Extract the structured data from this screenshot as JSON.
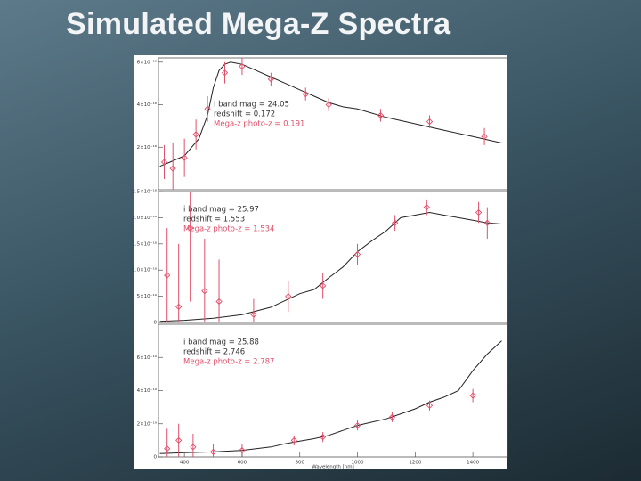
{
  "title": "Simulated Mega-Z Spectra",
  "chart_data": [
    {
      "type": "line",
      "xlim": [
        310,
        1520
      ],
      "ylim": [
        0,
        6.2e-18
      ],
      "yticks": [
        {
          "value": 2e-18,
          "label": "2×10⁻¹⁸"
        },
        {
          "value": 4e-18,
          "label": "4×10⁻¹⁸"
        },
        {
          "value": 6e-18,
          "label": "6×10⁻¹⁸"
        }
      ],
      "annotations": [
        {
          "text": "i band mag = 24.05",
          "color": "#333333"
        },
        {
          "text": "redshift = 0.172",
          "color": "#333333"
        },
        {
          "text": "Mega-z photo-z = 0.191",
          "color": "#e0506a"
        }
      ],
      "series": [
        {
          "color": "#222222",
          "x": [
            315,
            350,
            400,
            450,
            480,
            500,
            520,
            540,
            560,
            600,
            650,
            700,
            750,
            800,
            850,
            900,
            950,
            1000,
            1100,
            1200,
            1300,
            1400,
            1500
          ],
          "values": [
            1.1e-18,
            1.3e-18,
            1.6e-18,
            2.4e-18,
            3.5e-18,
            4.8e-18,
            5.6e-18,
            5.9e-18,
            6e-18,
            5.9e-18,
            5.6e-18,
            5.3e-18,
            5e-18,
            4.7e-18,
            4.4e-18,
            4.1e-18,
            3.9e-18,
            3.8e-18,
            3.4e-18,
            3.1e-18,
            2.8e-18,
            2.5e-18,
            2.2e-18
          ]
        },
        {
          "type": "errorbar",
          "color": "#e0506a",
          "x": [
            330,
            360,
            400,
            440,
            480,
            540,
            600,
            700,
            820,
            900,
            1080,
            1250,
            1440
          ],
          "values": [
            1.3e-18,
            1e-18,
            1.5e-18,
            2.6e-18,
            3.8e-18,
            5.5e-18,
            5.8e-18,
            5.2e-18,
            4.5e-18,
            4e-18,
            3.5e-18,
            3.2e-18,
            2.5e-18
          ],
          "errors": [
            8e-19,
            1.2e-18,
            9e-19,
            7e-19,
            6e-19,
            5e-19,
            4e-19,
            3e-19,
            3e-19,
            3e-19,
            3e-19,
            3e-19,
            4e-19
          ]
        }
      ]
    },
    {
      "type": "line",
      "xlim": [
        310,
        1520
      ],
      "ylim": [
        0,
        2.5e-18
      ],
      "yticks": [
        0,
        {
          "value": 5e-19,
          "label": "5×10⁻¹⁹"
        },
        {
          "value": 1e-18,
          "label": "1.0×10⁻¹⁸"
        },
        {
          "value": 1.5e-18,
          "label": "1.5×10⁻¹⁸"
        },
        {
          "value": 2e-18,
          "label": "2.0×10⁻¹⁸"
        },
        {
          "value": 2.5e-18,
          "label": "2.5×10⁻¹⁸"
        }
      ],
      "annotations": [
        {
          "text": "i band mag = 25.97",
          "color": "#333333"
        },
        {
          "text": "redshift = 1.553",
          "color": "#333333"
        },
        {
          "text": "Mega-z photo-z = 1.534",
          "color": "#e0506a"
        }
      ],
      "series": [
        {
          "color": "#222222",
          "x": [
            315,
            400,
            500,
            600,
            700,
            750,
            800,
            850,
            900,
            950,
            1000,
            1050,
            1100,
            1150,
            1200,
            1250,
            1300,
            1350,
            1400,
            1450,
            1500
          ],
          "values": [
            2e-20,
            4e-20,
            8e-20,
            1.5e-19,
            2.9e-19,
            4.2e-19,
            5.5e-19,
            6.3e-19,
            8.5e-19,
            1.06e-18,
            1.35e-18,
            1.56e-18,
            1.75e-18,
            2e-18,
            2.05e-18,
            2.1e-18,
            2.05e-18,
            2e-18,
            1.95e-18,
            1.9e-18,
            1.88e-18
          ]
        },
        {
          "type": "errorbar",
          "color": "#e0506a",
          "x": [
            340,
            380,
            420,
            470,
            520,
            640,
            760,
            880,
            1000,
            1130,
            1240,
            1420,
            1450
          ],
          "values": [
            9e-19,
            3e-19,
            1.8e-18,
            6e-19,
            4e-19,
            1.5e-19,
            5e-19,
            7e-19,
            1.3e-18,
            1.9e-18,
            2.2e-18,
            2.1e-18,
            1.9e-18
          ],
          "errors": [
            9e-19,
            1.2e-18,
            1.4e-18,
            1e-18,
            8e-19,
            3e-19,
            3e-19,
            2.5e-19,
            2e-19,
            1.5e-19,
            1.5e-19,
            2e-19,
            3e-19
          ]
        }
      ]
    },
    {
      "type": "line",
      "xlim": [
        310,
        1520
      ],
      "ylim": [
        0,
        8e-19
      ],
      "xticks": [
        400,
        600,
        800,
        1000,
        1200,
        1400
      ],
      "xlabel": "Wavelength [nm]",
      "yticks": [
        0,
        {
          "value": 2e-19,
          "label": "2×10⁻¹⁹"
        },
        {
          "value": 4e-19,
          "label": "4×10⁻¹⁹"
        },
        {
          "value": 6e-19,
          "label": "6×10⁻¹⁹"
        }
      ],
      "annotations": [
        {
          "text": "i band mag = 25.88",
          "color": "#333333"
        },
        {
          "text": "redshift = 2.746",
          "color": "#333333"
        },
        {
          "text": "Mega-z photo-z = 2.787",
          "color": "#e0506a"
        }
      ],
      "series": [
        {
          "color": "#222222",
          "x": [
            315,
            400,
            500,
            600,
            700,
            750,
            800,
            850,
            900,
            950,
            1000,
            1050,
            1100,
            1150,
            1200,
            1250,
            1300,
            1350,
            1400,
            1450,
            1500
          ],
          "values": [
            2e-20,
            2.5e-20,
            3e-20,
            4e-20,
            6e-20,
            8e-20,
            9.5e-20,
            1.1e-19,
            1.3e-19,
            1.6e-19,
            1.9e-19,
            2.1e-19,
            2.3e-19,
            2.6e-19,
            2.9e-19,
            3.3e-19,
            3.6e-19,
            4e-19,
            5.2e-19,
            6.2e-19,
            7e-19
          ]
        },
        {
          "type": "errorbar",
          "color": "#e0506a",
          "x": [
            340,
            380,
            430,
            500,
            600,
            780,
            880,
            1000,
            1120,
            1250,
            1400
          ],
          "values": [
            5e-20,
            1e-19,
            6e-20,
            3e-20,
            4e-20,
            1e-19,
            1.2e-19,
            1.9e-19,
            2.4e-19,
            3.1e-19,
            3.7e-19
          ],
          "errors": [
            1.2e-19,
            1e-19,
            8e-20,
            5e-20,
            4e-20,
            3e-20,
            3e-20,
            3e-20,
            3e-20,
            3e-20,
            4e-20
          ]
        }
      ]
    }
  ]
}
